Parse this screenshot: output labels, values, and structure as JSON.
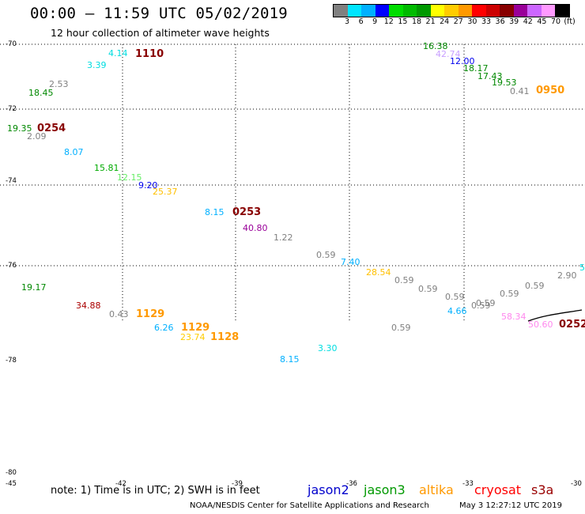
{
  "header": {
    "title": "00:00 – 11:59 UTC 05/02/2019",
    "subtitle": "12 hour collection of altimeter wave heights"
  },
  "legend_scale": {
    "colors": [
      "#808080",
      "#00e5ff",
      "#00b0ff",
      "#0000ff",
      "#00dd00",
      "#00bb00",
      "#009900",
      "#ffff00",
      "#ffcc00",
      "#ff9900",
      "#ff0000",
      "#cc0000",
      "#880000",
      "#990099",
      "#cc66ff",
      "#ff99ff",
      "#000000"
    ],
    "labels": [
      "3",
      "6",
      "9",
      "12",
      "15",
      "18",
      "21",
      "24",
      "27",
      "30",
      "33",
      "36",
      "39",
      "42",
      "45",
      "70",
      "(ft)"
    ]
  },
  "axes": {
    "lat_labels": [
      "-70",
      "-72",
      "-74",
      "-76",
      "-78",
      "-80"
    ],
    "lon_labels": [
      "-45",
      "-42",
      "-39",
      "-36",
      "-33",
      "-30"
    ]
  },
  "wave_heights": [
    {
      "text": "4.14",
      "color": "#00dde0"
    },
    {
      "text": "3.39",
      "color": "#00dde0"
    },
    {
      "text": "2.53",
      "color": "#808080"
    },
    {
      "text": "18.45",
      "color": "#008800"
    },
    {
      "text": "19.35",
      "color": "#008800"
    },
    {
      "text": "2.09",
      "color": "#808080"
    },
    {
      "text": "8.07",
      "color": "#00b0ff"
    },
    {
      "text": "15.81",
      "color": "#00aa00"
    },
    {
      "text": "12.15",
      "color": "#66ee66"
    },
    {
      "text": "9.20",
      "color": "#0000ee"
    },
    {
      "text": "25.37",
      "color": "#ffc000"
    },
    {
      "text": "8.15",
      "color": "#00b0ff"
    },
    {
      "text": "40.80",
      "color": "#990099"
    },
    {
      "text": "1.22",
      "color": "#808080"
    },
    {
      "text": "0.59",
      "color": "#808080"
    },
    {
      "text": "7.40",
      "color": "#00b0ff"
    },
    {
      "text": "28.54",
      "color": "#ffc000"
    },
    {
      "text": "0.59",
      "color": "#808080"
    },
    {
      "text": "0.59",
      "color": "#808080"
    },
    {
      "text": "0.59",
      "color": "#808080"
    },
    {
      "text": "0.59",
      "color": "#808080"
    },
    {
      "text": "0.59",
      "color": "#808080"
    },
    {
      "text": "0.59",
      "color": "#808080"
    },
    {
      "text": "0.59",
      "color": "#808080"
    },
    {
      "text": "2.90",
      "color": "#808080"
    },
    {
      "text": "5",
      "color": "#00dde0"
    },
    {
      "text": "4.66",
      "color": "#00b0ff"
    },
    {
      "text": "58.34",
      "color": "#ff88ee"
    },
    {
      "text": "50.60",
      "color": "#ff88ee"
    },
    {
      "text": "16.38",
      "color": "#008800"
    },
    {
      "text": "42.74",
      "color": "#c8a0ff"
    },
    {
      "text": "12.00",
      "color": "#0000ee"
    },
    {
      "text": "18.17",
      "color": "#008800"
    },
    {
      "text": "17.43",
      "color": "#008800"
    },
    {
      "text": "19.53",
      "color": "#008800"
    },
    {
      "text": "0.41",
      "color": "#808080"
    },
    {
      "text": "19.17",
      "color": "#008800"
    },
    {
      "text": "34.88",
      "color": "#aa0000"
    },
    {
      "text": "0.43",
      "color": "#808080"
    },
    {
      "text": "6.26",
      "color": "#00b0ff"
    },
    {
      "text": "23.74",
      "color": "#ffcc00"
    },
    {
      "text": "3.30",
      "color": "#00dde0"
    },
    {
      "text": "8.15",
      "color": "#00b0ff"
    },
    {
      "text": "0.59",
      "color": "#808080"
    }
  ],
  "time_labels": [
    {
      "text": "1110",
      "color": "#880000"
    },
    {
      "text": "0254",
      "color": "#880000"
    },
    {
      "text": "0253",
      "color": "#880000"
    },
    {
      "text": "0950",
      "color": "#ff9900"
    },
    {
      "text": "1129",
      "color": "#ff9900"
    },
    {
      "text": "1129",
      "color": "#ff9900"
    },
    {
      "text": "1128",
      "color": "#ff9900"
    },
    {
      "text": "0252",
      "color": "#880000"
    }
  ],
  "footer": {
    "note": "note: 1) Time is in UTC; 2) SWH is in feet",
    "satellites": [
      {
        "name": "jason2",
        "color": "#0000cc"
      },
      {
        "name": "jason3",
        "color": "#009900"
      },
      {
        "name": "altika",
        "color": "#ff9900"
      },
      {
        "name": "cryosat",
        "color": "#ff0000"
      },
      {
        "name": "s3a",
        "color": "#990000"
      }
    ],
    "credit": "NOAA/NESDIS Center for Satellite Applications and Research",
    "generated": "May  3 12:27:12 UTC 2019"
  }
}
